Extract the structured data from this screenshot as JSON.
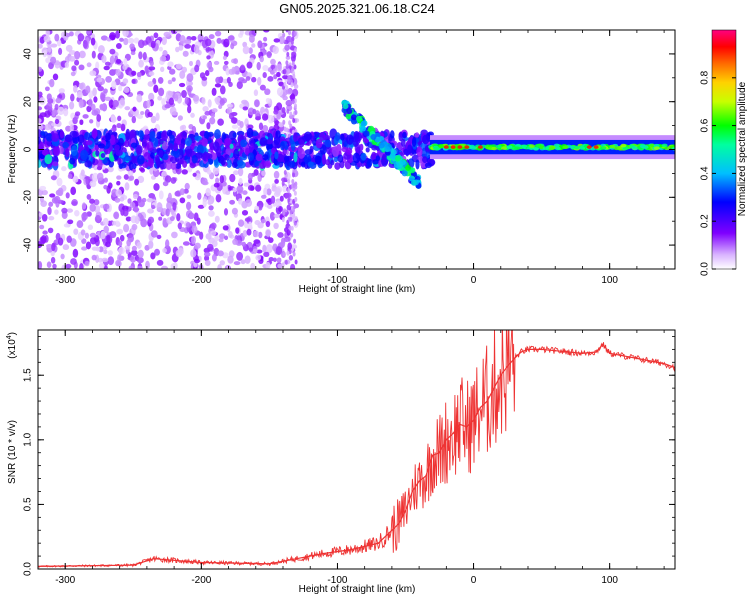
{
  "chart_data": [
    {
      "type": "heatmap",
      "title": "GN05.2025.321.06.18.C24",
      "xlabel": "Height of straight line (km)",
      "ylabel": "Frequency (Hz)",
      "xlim": [
        -320,
        148
      ],
      "ylim": [
        -50,
        50
      ],
      "xticks": [
        -300,
        -200,
        -100,
        0,
        100
      ],
      "xtick_labels": [
        "-300",
        "-200",
        "-100",
        "0",
        "100"
      ],
      "yticks": [
        -40,
        -20,
        0,
        20,
        40
      ],
      "ytick_labels": [
        "-40",
        "-20",
        "0",
        "20",
        "40"
      ],
      "colorbar": {
        "label": "Normalized spectral amplitude",
        "range": [
          0,
          1
        ],
        "ticks": [
          0.0,
          0.2,
          0.4,
          0.6,
          0.8
        ],
        "tick_labels": [
          "0.0",
          "0.2",
          "0.4",
          "0.6",
          "0.8"
        ],
        "colormap": [
          "#ffffff",
          "#7f00ff",
          "#0000ff",
          "#00ffff",
          "#00ff00",
          "#ffff00",
          "#ff7f00",
          "#ff0000",
          "#ff0080"
        ]
      },
      "features": [
        {
          "description": "scattered low-amplitude speckle across all frequencies",
          "x_range": [
            -320,
            -130
          ],
          "amplitude": 0.1
        },
        {
          "description": "band near 0 Hz",
          "x_range": [
            -320,
            -30
          ],
          "freq": 0,
          "amplitude": 0.3
        },
        {
          "description": "descending streak",
          "x_start": -95,
          "x_end": -40,
          "freq_start": 18,
          "freq_end": -14,
          "amplitude": 0.5
        },
        {
          "description": "steady line at ~1 Hz",
          "x_range": [
            -30,
            148
          ],
          "freq": 1,
          "amplitude": 0.55
        }
      ]
    },
    {
      "type": "line",
      "xlabel": "Height of straight line (km)",
      "ylabel": "SNR (10 * v/v)",
      "multiplier_label": "(x10",
      "multiplier_exponent": "4",
      "xlim": [
        -320,
        148
      ],
      "ylim": [
        0,
        18500
      ],
      "xticks": [
        -300,
        -200,
        -100,
        0,
        100
      ],
      "xtick_labels": [
        "-300",
        "-200",
        "-100",
        "0",
        "100"
      ],
      "yticks": [
        0,
        5000,
        10000,
        15000
      ],
      "ytick_labels": [
        "0.0",
        "0.5",
        "1.0",
        "1.5"
      ],
      "series": [
        {
          "name": "SNR",
          "color": "#ee3333",
          "x": [
            -320,
            -250,
            -235,
            -200,
            -150,
            -130,
            -110,
            -90,
            -70,
            -55,
            -50,
            -45,
            -40,
            -35,
            -30,
            -25,
            -20,
            -15,
            -10,
            -5,
            0,
            5,
            10,
            15,
            20,
            25,
            30,
            35,
            40,
            50,
            60,
            70,
            80,
            90,
            95,
            100,
            110,
            120,
            130,
            140,
            148
          ],
          "y": [
            200,
            300,
            800,
            500,
            400,
            800,
            1200,
            1500,
            2000,
            3500,
            4500,
            6000,
            6800,
            7200,
            8800,
            9000,
            10000,
            10500,
            11200,
            11000,
            11500,
            12500,
            13000,
            14000,
            15000,
            15700,
            16300,
            16800,
            17000,
            17000,
            16900,
            16800,
            16700,
            16800,
            17400,
            16700,
            16500,
            16300,
            16100,
            15900,
            15600
          ]
        }
      ]
    }
  ]
}
